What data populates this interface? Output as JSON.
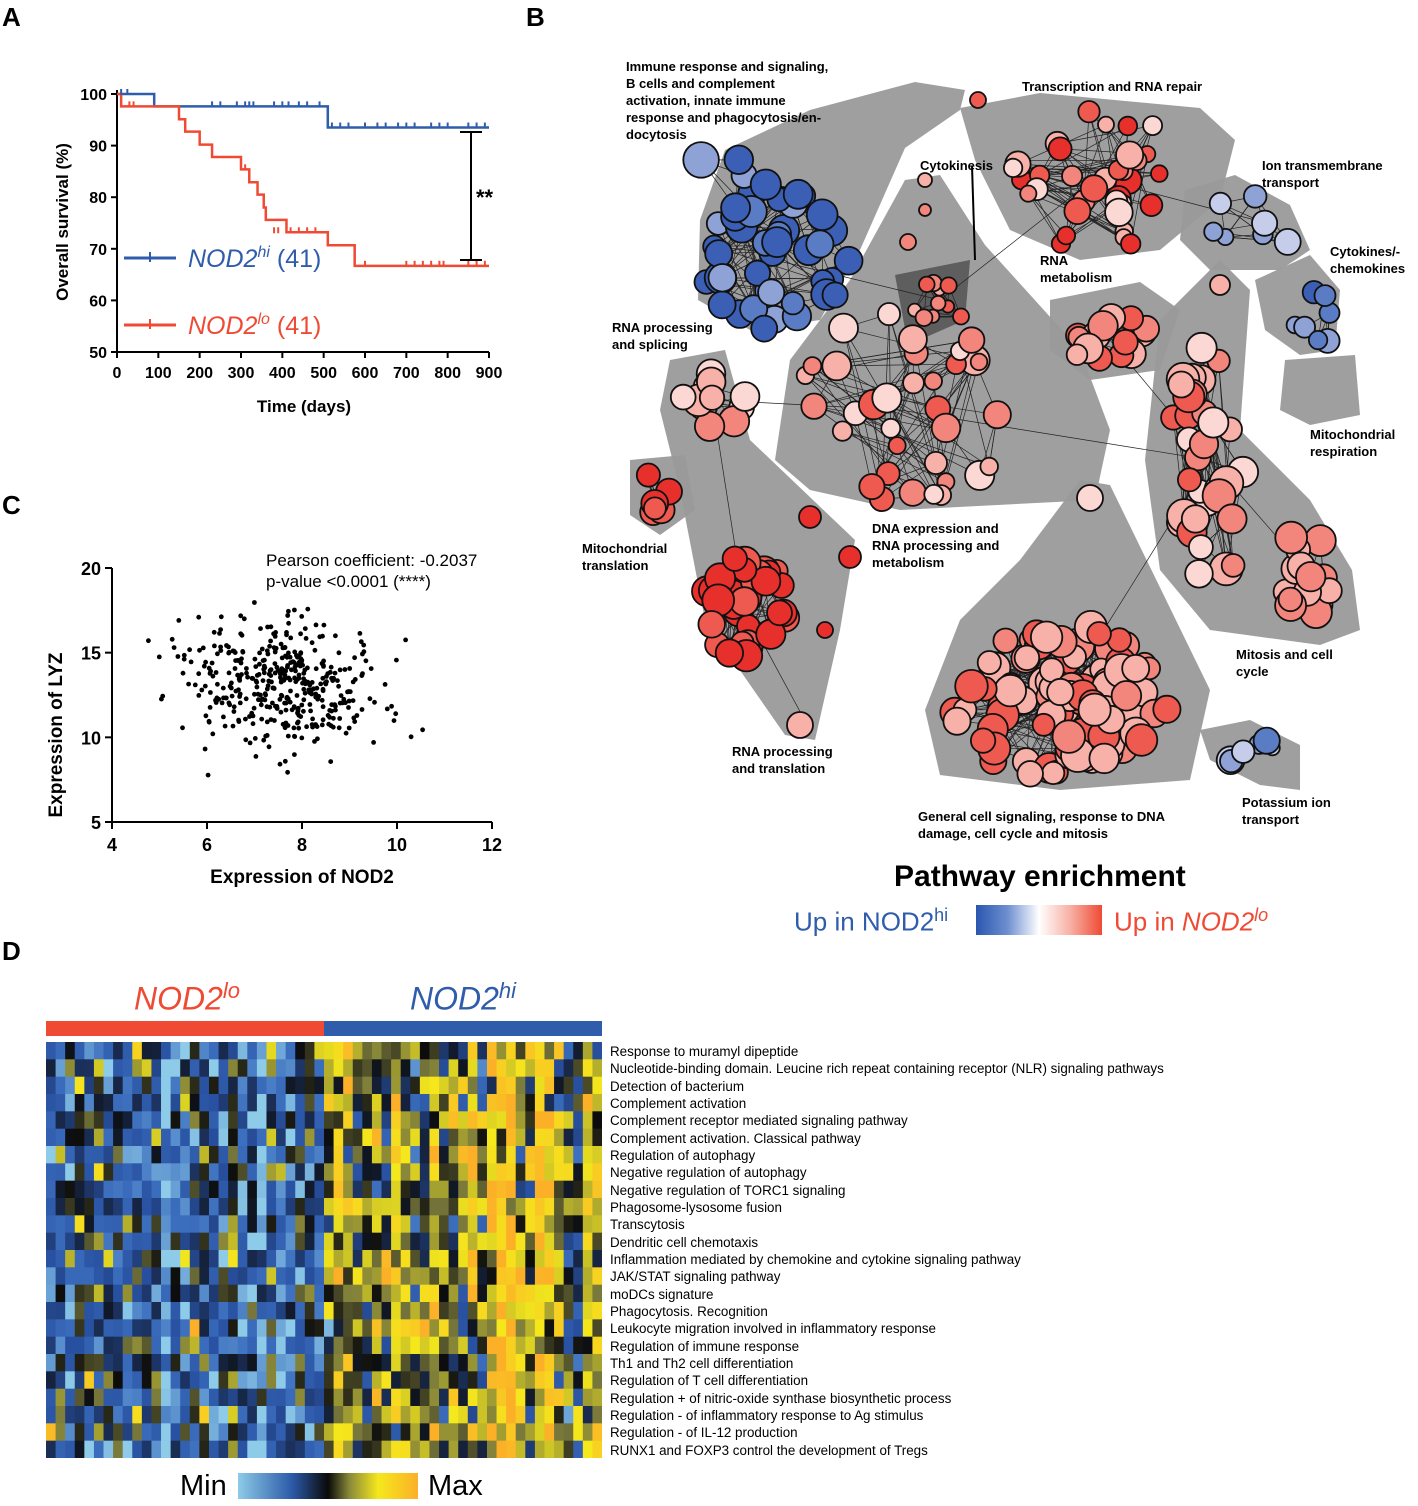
{
  "panels": {
    "a": "A",
    "b": "B",
    "c": "C",
    "d": "D"
  },
  "survival": {
    "ylabel": "Overall survival (%)",
    "xlabel": "Time (days)",
    "significance": "**",
    "legend": [
      {
        "name": "NOD2",
        "sup": "hi",
        "n": "(41)",
        "color": "#2f5dab"
      },
      {
        "name": "NOD2",
        "sup": "lo",
        "n": "(41)",
        "color": "#ef4b34"
      }
    ]
  },
  "scatter": {
    "pearson": "Pearson coefficient: -0.2037",
    "pvalue": "p-value <0.0001 (****)",
    "xlabel": "Expression of NOD2",
    "ylabel": "Expression of LYZ"
  },
  "network": {
    "labels": [
      "Immune response and signaling,\nB cells and complement\nactivation, innate immune\nresponse and phagocytosis/en-\ndocytosis",
      "Transcription and RNA repair",
      "Cytokinesis",
      "Ion transmembrane\ntransport",
      "Cytokines/-\nchemokines",
      "RNA\nmetabolism",
      "RNA processing\nand splicing",
      "Mitochondrial\nrespiration",
      "DNA expression and\nRNA processing and\nmetabolism",
      "Mitochondrial\ntranslation",
      "Mitosis and cell\ncycle",
      "RNA processing\nand translation",
      "Potassium ion\ntransport",
      "General cell signaling, response to DNA\ndamage, cell cycle and mitosis"
    ],
    "legend_title": "Pathway enrichment",
    "legend_left": "Up in NOD2",
    "legend_left_sup": "hi",
    "legend_right": "Up in NOD2",
    "legend_right_sup": "lo",
    "color_hi": "#2f5dab",
    "color_lo": "#ef4b34"
  },
  "heatmap": {
    "group_lo": "NOD2",
    "group_lo_sup": "lo",
    "group_hi": "NOD2",
    "group_hi_sup": "hi",
    "scale_min": "Min",
    "scale_max": "Max",
    "rows": [
      "Response to muramyl dipeptide",
      "Nucleotide-binding domain. Leucine rich repeat containing receptor (NLR) signaling pathways",
      "Detection of bacterium",
      "Complement activation",
      "Complement receptor mediated signaling pathway",
      "Complement activation. Classical pathway",
      "Regulation of autophagy",
      "Negative regulation of autophagy",
      "Negative regulation of TORC1 signaling",
      "Phagosome-lysosome fusion",
      "Transcytosis",
      "Dendritic cell chemotaxis",
      "Inflammation mediated by chemokine and cytokine signaling pathway",
      "JAK/STAT signaling pathway",
      "moDCs signature",
      "Phagocytosis. Recognition",
      "Leukocyte migration involved in inflammatory response",
      "Regulation of immune response",
      "Th1 and Th2 cell differentiation",
      "Regulation of T cell differentiation",
      "Regulation + of nitric-oxide synthase biosynthetic process",
      "Regulation - of inflammatory response to Ag stimulus",
      "Regulation - of IL-12 production",
      "RUNX1 and FOXP3 control the development of Tregs"
    ]
  },
  "chart_data": [
    {
      "type": "line",
      "title": "",
      "xlabel": "Time (days)",
      "ylabel": "Overall survival (%)",
      "xlim": [
        0,
        900
      ],
      "ylim": [
        50,
        100
      ],
      "xticks": [
        0,
        100,
        200,
        300,
        400,
        500,
        600,
        700,
        800,
        900
      ],
      "yticks": [
        50,
        60,
        70,
        80,
        90,
        100
      ],
      "series": [
        {
          "name": "NOD2hi (41)",
          "x": [
            0,
            90,
            90,
            510,
            510,
            900
          ],
          "y": [
            100,
            100,
            97.6,
            97.6,
            93.5,
            93.5
          ]
        },
        {
          "name": "NOD2lo (41)",
          "x": [
            0,
            10,
            10,
            150,
            150,
            165,
            165,
            200,
            200,
            230,
            230,
            300,
            300,
            320,
            320,
            340,
            340,
            355,
            355,
            360,
            360,
            410,
            410,
            510,
            510,
            575,
            575,
            900
          ],
          "y": [
            100,
            100,
            97.6,
            97.6,
            95.1,
            95.1,
            92.7,
            92.7,
            90.2,
            90.2,
            87.8,
            87.8,
            85.4,
            85.4,
            82.9,
            82.9,
            80.5,
            80.5,
            78.0,
            78.0,
            75.6,
            75.6,
            73.2,
            73.2,
            70.7,
            70.7,
            66.7,
            66.7
          ]
        }
      ]
    },
    {
      "type": "scatter",
      "title": "",
      "xlabel": "Expression of NOD2",
      "ylabel": "Expression of LYZ",
      "xlim": [
        4,
        12
      ],
      "ylim": [
        5,
        20
      ],
      "xticks": [
        4,
        6,
        8,
        10,
        12
      ],
      "yticks": [
        5,
        10,
        15,
        20
      ],
      "pearson_r": -0.2037,
      "n_points": 420
    },
    {
      "type": "heatmap",
      "rows": 24,
      "columns": 58,
      "groups": [
        {
          "name": "NOD2lo",
          "columns": 29
        },
        {
          "name": "NOD2hi",
          "columns": 29
        }
      ]
    }
  ]
}
